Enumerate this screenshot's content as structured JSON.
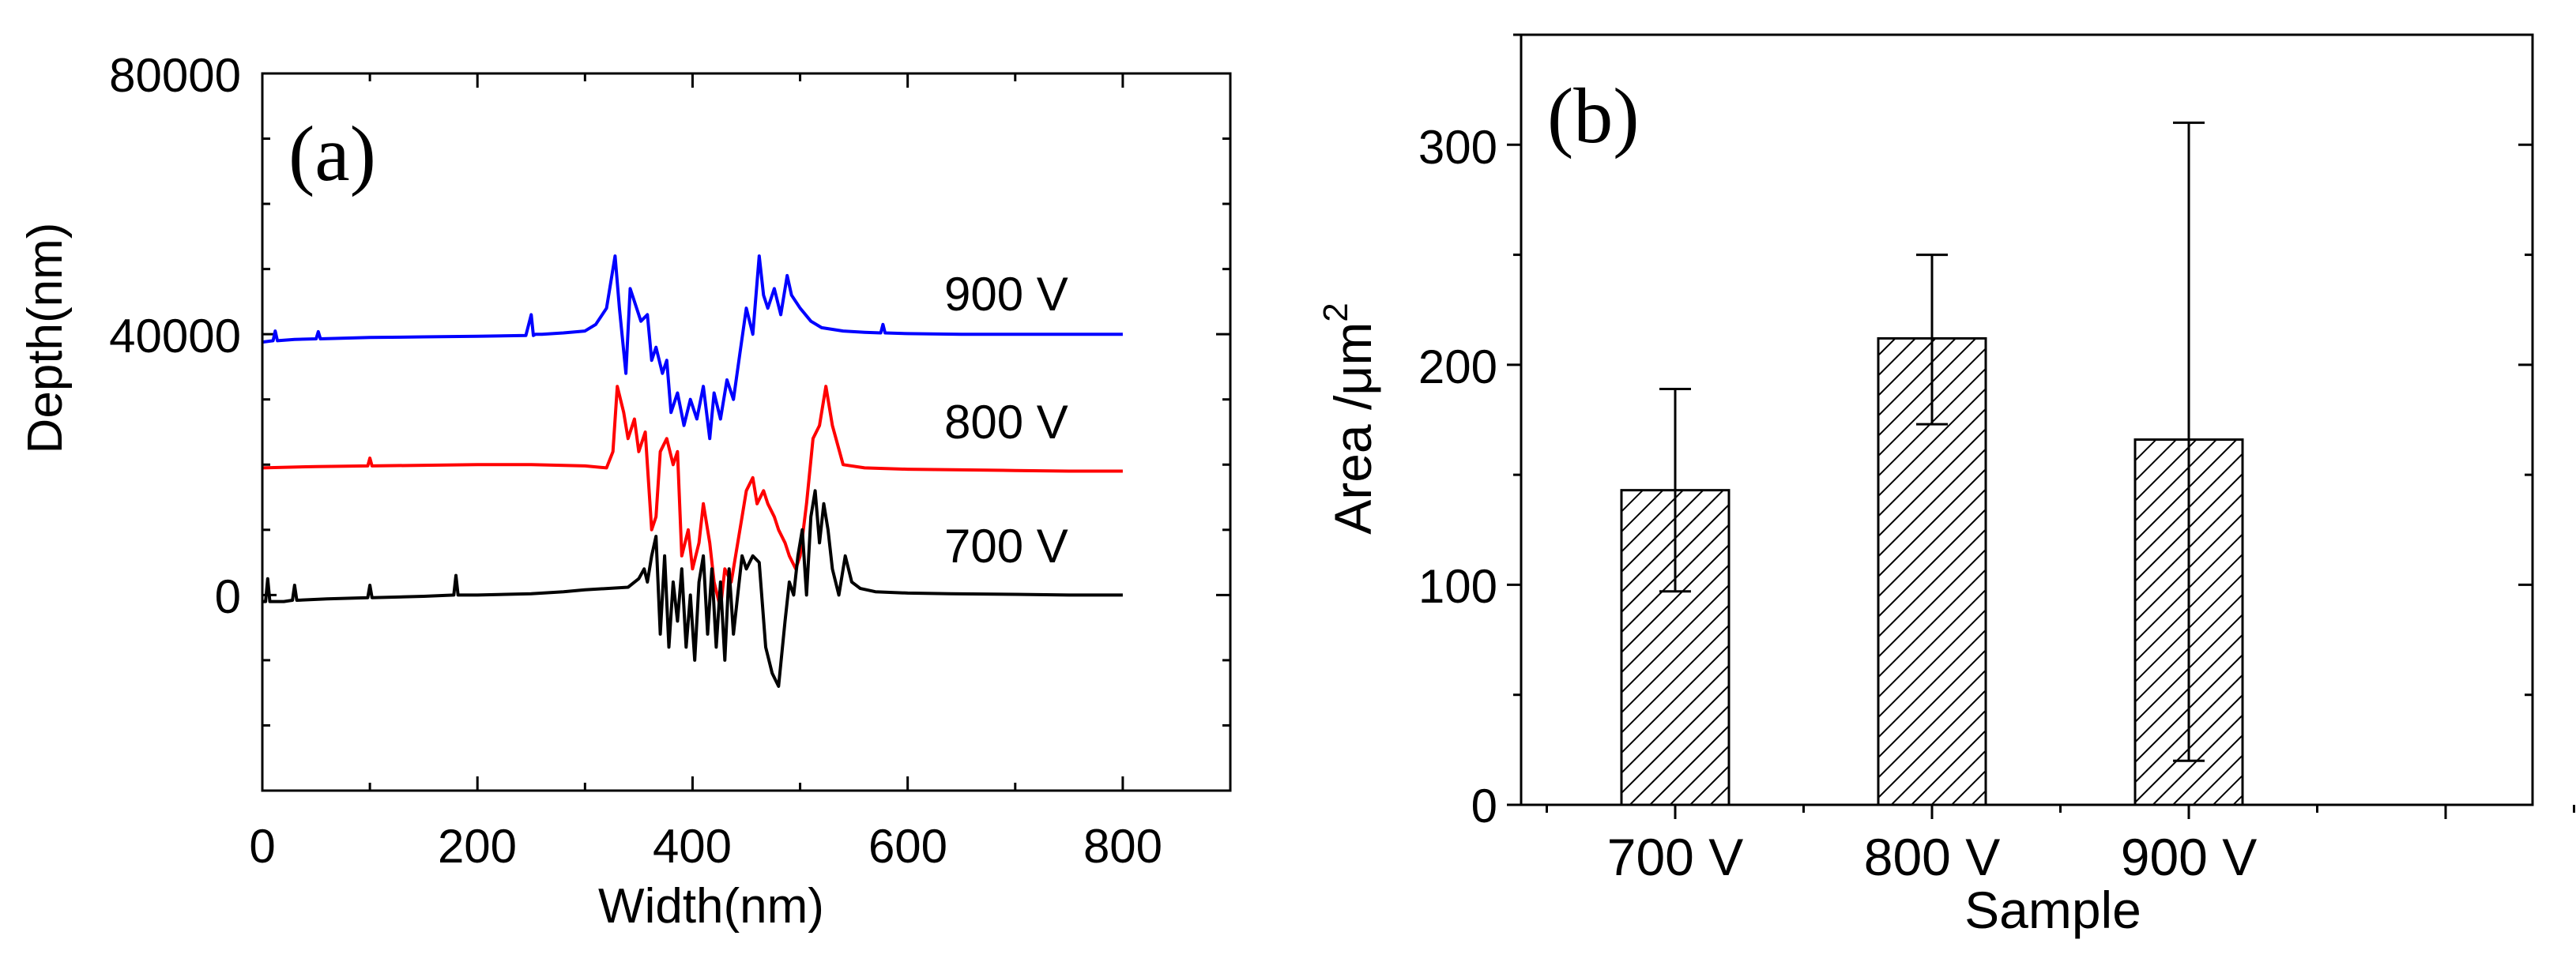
{
  "chart_data": [
    {
      "panel_label": "(a)",
      "type": "line",
      "xlabel": "Width(nm)",
      "ylabel": "Depth(nm)",
      "xlim": [
        0,
        900
      ],
      "ylim": [
        -30000,
        80000
      ],
      "x_ticks": [
        "0",
        "200",
        "400",
        "600",
        "800"
      ],
      "y_ticks": [
        "0",
        "40000",
        "80000"
      ],
      "legend": "inline labels at right end of each trace",
      "series": [
        {
          "name": "900 V",
          "color": "#0000ff",
          "x": [
            0,
            10,
            12,
            14,
            30,
            50,
            52,
            54,
            100,
            150,
            200,
            245,
            250,
            252,
            254,
            260,
            280,
            300,
            310,
            320,
            328,
            332,
            338,
            342,
            348,
            352,
            358,
            362,
            366,
            372,
            376,
            380,
            386,
            392,
            398,
            404,
            410,
            416,
            420,
            426,
            432,
            438,
            444,
            450,
            456,
            462,
            466,
            470,
            476,
            482,
            488,
            492,
            500,
            510,
            520,
            540,
            560,
            575,
            577,
            579,
            600,
            650,
            700,
            750,
            800
          ],
          "y": [
            38800,
            39000,
            40500,
            39000,
            39200,
            39300,
            40400,
            39300,
            39500,
            39600,
            39700,
            39800,
            43000,
            39800,
            40000,
            40000,
            40200,
            40500,
            41500,
            44000,
            52000,
            44000,
            34000,
            47000,
            44000,
            42000,
            43000,
            36000,
            38000,
            34000,
            36000,
            28000,
            31000,
            26000,
            30000,
            27000,
            32000,
            24000,
            31000,
            27000,
            33000,
            30000,
            37000,
            44000,
            40000,
            52000,
            46000,
            44000,
            47000,
            43000,
            49000,
            46000,
            44000,
            42000,
            41000,
            40500,
            40300,
            40200,
            41500,
            40200,
            40100,
            40000,
            40000,
            40000,
            40000
          ]
        },
        {
          "name": "800 V",
          "color": "#ff0000",
          "x": [
            0,
            50,
            98,
            100,
            102,
            150,
            200,
            250,
            300,
            320,
            326,
            330,
            336,
            340,
            346,
            350,
            356,
            362,
            366,
            370,
            376,
            382,
            386,
            390,
            396,
            400,
            406,
            410,
            416,
            420,
            426,
            430,
            436,
            440,
            446,
            450,
            456,
            460,
            466,
            470,
            476,
            480,
            486,
            490,
            496,
            500,
            506,
            512,
            518,
            524,
            530,
            540,
            560,
            600,
            650,
            700,
            750,
            800
          ],
          "y": [
            19500,
            19700,
            19800,
            21000,
            19800,
            19900,
            20000,
            20000,
            19800,
            19500,
            22000,
            32000,
            28000,
            24000,
            27000,
            22000,
            25000,
            10000,
            12000,
            22000,
            24000,
            20000,
            22000,
            6000,
            10000,
            4000,
            8000,
            14000,
            8000,
            2000,
            -2000,
            4000,
            2000,
            6000,
            12000,
            16000,
            18000,
            14000,
            16000,
            14000,
            12000,
            10000,
            8000,
            6000,
            4000,
            6000,
            14000,
            24000,
            26000,
            32000,
            26000,
            20000,
            19500,
            19300,
            19200,
            19100,
            19000,
            19000
          ]
        },
        {
          "name": "700 V",
          "color": "#000000",
          "x": [
            0,
            3,
            5,
            7,
            20,
            28,
            30,
            32,
            60,
            98,
            100,
            102,
            150,
            178,
            180,
            182,
            200,
            250,
            280,
            300,
            340,
            350,
            355,
            358,
            362,
            366,
            370,
            374,
            378,
            382,
            386,
            390,
            394,
            398,
            402,
            406,
            410,
            414,
            418,
            422,
            426,
            430,
            434,
            438,
            442,
            446,
            450,
            456,
            462,
            468,
            474,
            480,
            486,
            490,
            494,
            498,
            502,
            506,
            510,
            514,
            518,
            522,
            526,
            530,
            536,
            542,
            548,
            556,
            570,
            600,
            640,
            700,
            750,
            800
          ],
          "y": [
            -1000,
            -1000,
            2500,
            -1000,
            -1000,
            -800,
            1500,
            -800,
            -600,
            -400,
            1500,
            -400,
            -200,
            0,
            3000,
            0,
            0,
            200,
            500,
            800,
            1200,
            2500,
            4000,
            2000,
            6000,
            9000,
            -6000,
            6000,
            -8000,
            2000,
            -4000,
            4000,
            -8000,
            0,
            -10000,
            2000,
            6000,
            -6000,
            4000,
            -8000,
            2000,
            -10000,
            4000,
            -6000,
            0,
            6000,
            4000,
            6000,
            5000,
            -8000,
            -12000,
            -14000,
            -4000,
            2000,
            0,
            6000,
            10000,
            0,
            12000,
            16000,
            8000,
            14000,
            10000,
            4000,
            0,
            6000,
            2000,
            1000,
            500,
            300,
            200,
            100,
            0,
            0
          ]
        }
      ]
    },
    {
      "panel_label": "(b)",
      "type": "bar",
      "xlabel": "Sample",
      "ylabel_main": "Area /",
      "ylabel_unit": "μm",
      "ylabel_exp": "2",
      "ylim": [
        0,
        350
      ],
      "y_ticks": [
        "0",
        "100",
        "200",
        "300"
      ],
      "categories": [
        "700 V",
        "800 V",
        "900 V"
      ],
      "values": [
        143,
        212,
        166
      ],
      "error_low": [
        97,
        173,
        20
      ],
      "error_high": [
        189,
        250,
        310
      ],
      "bar_fill": "diagonal hatch",
      "grid": false
    }
  ]
}
